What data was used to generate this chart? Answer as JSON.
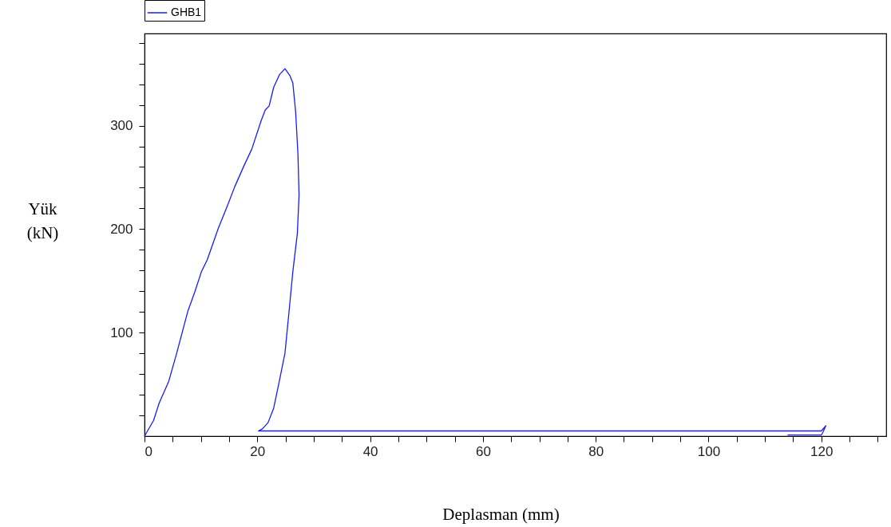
{
  "chart_data": {
    "type": "line",
    "xlabel": "Deplasman (mm)",
    "ylabel": "Yük (kN)",
    "legend": "top left",
    "grid": false,
    "marker": "none",
    "line_style": "solid",
    "xlim": [
      0,
      131.5
    ],
    "ylim": [
      0,
      389
    ],
    "xticks": [
      0,
      {
        "value": 5,
        "label": null
      },
      20,
      {
        "value": 10,
        "label": null
      },
      {
        "value": 15,
        "label": null
      },
      {
        "value": 25,
        "label": null
      },
      {
        "value": 30,
        "label": null
      },
      {
        "value": 35,
        "label": null
      },
      40,
      {
        "value": 45,
        "label": null
      },
      {
        "value": 50,
        "label": null
      },
      {
        "value": 55,
        "label": null
      },
      60,
      {
        "value": 65,
        "label": null
      },
      {
        "value": 70,
        "label": null
      },
      {
        "value": 75,
        "label": null
      },
      80,
      {
        "value": 85,
        "label": null
      },
      {
        "value": 90,
        "label": null
      },
      {
        "value": 95,
        "label": null
      },
      100,
      {
        "value": 105,
        "label": null
      },
      {
        "value": 110,
        "label": null
      },
      {
        "value": 115,
        "label": null
      },
      120,
      {
        "value": 125,
        "label": null
      },
      {
        "value": 130,
        "label": null
      }
    ],
    "yticks": [
      {
        "value": 20,
        "label": null
      },
      {
        "value": 40,
        "label": null
      },
      {
        "value": 60,
        "label": null
      },
      {
        "value": 80,
        "label": null
      },
      100,
      {
        "value": 120,
        "label": null
      },
      {
        "value": 140,
        "label": null
      },
      {
        "value": 160,
        "label": null
      },
      {
        "value": 180,
        "label": null
      },
      200,
      {
        "value": 220,
        "label": null
      },
      {
        "value": 240,
        "label": null
      },
      {
        "value": 260,
        "label": null
      },
      {
        "value": 280,
        "label": null
      },
      300,
      {
        "value": 320,
        "label": null
      },
      {
        "value": 340,
        "label": null
      },
      {
        "value": 360,
        "label": null
      },
      {
        "value": 380,
        "label": null
      }
    ],
    "series": [
      {
        "name": "GHB1",
        "color": "#1a1aff",
        "x": [
          0,
          1.6,
          2.6,
          4.3,
          5.7,
          7.7,
          8.9,
          10.1,
          11.1,
          13.1,
          14.8,
          16,
          17.7,
          19,
          20.7,
          21.4,
          22.1,
          22.9,
          23.9,
          24.9,
          25.8,
          26.3,
          26.8,
          27.2,
          27.4,
          27.1,
          26.3,
          25.6,
          24.9,
          23.9,
          22.9,
          21.9,
          20.9,
          20.2,
          120,
          120.8,
          120.3,
          120,
          114
        ],
        "values": [
          0,
          15,
          32,
          53,
          80,
          121,
          139,
          159,
          170,
          201,
          224,
          241,
          262,
          277,
          305,
          315,
          319,
          337,
          349,
          355,
          348,
          341,
          313,
          273,
          233,
          196,
          159,
          119,
          80,
          53,
          27,
          13,
          7,
          5,
          5,
          10,
          4,
          1,
          1
        ]
      }
    ]
  }
}
